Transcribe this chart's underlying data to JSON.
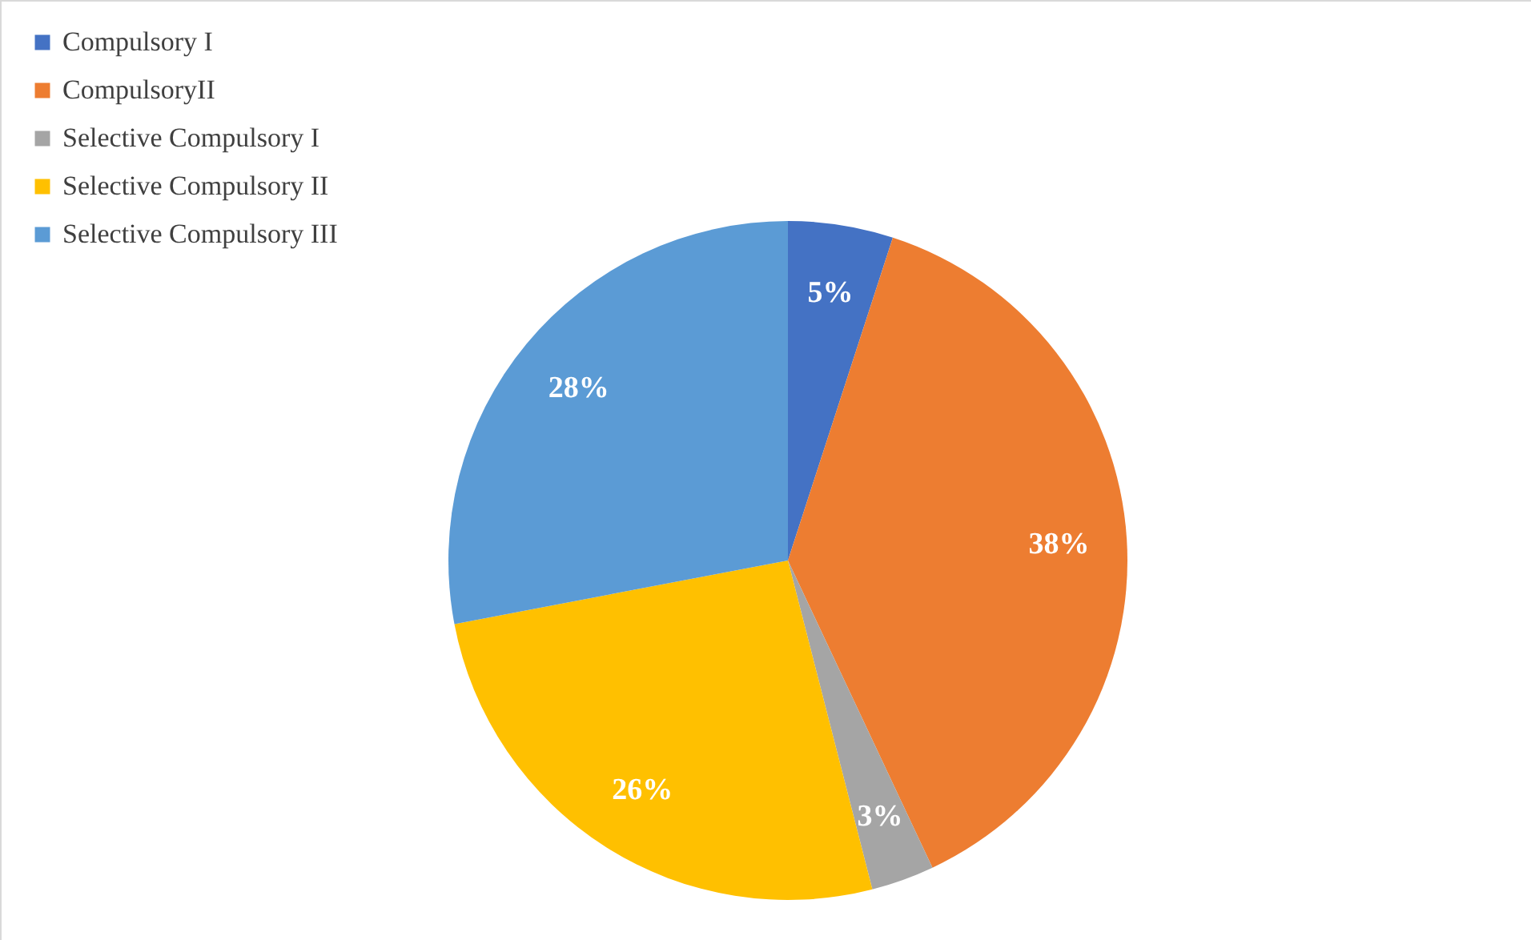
{
  "chart_data": {
    "type": "pie",
    "categories": [
      "Compulsory I",
      "CompulsoryII",
      "Selective Compulsory I",
      "Selective Compulsory II",
      "Selective Compulsory III"
    ],
    "values": [
      5,
      38,
      3,
      26,
      28
    ],
    "colors": [
      "#4472c4",
      "#ed7d31",
      "#a5a5a5",
      "#ffc000",
      "#5b9bd5"
    ],
    "value_labels": [
      "5%",
      "38%",
      "3%",
      "26%",
      "28%"
    ],
    "legend": "top left"
  }
}
